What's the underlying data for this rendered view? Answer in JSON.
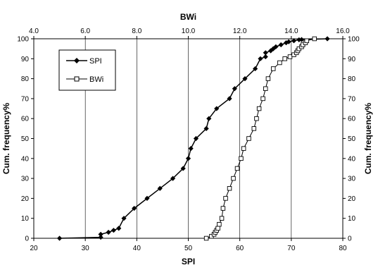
{
  "chart_data": {
    "type": "line",
    "title": "",
    "xlabel": "SPI",
    "x2label": "BWi",
    "ylabel": "Cum. frequency%",
    "y2label": "Cum. frequency%",
    "xlim": [
      20,
      80
    ],
    "x2lim": [
      4.0,
      16.0
    ],
    "ylim": [
      0,
      100
    ],
    "x_ticks": [
      20,
      30,
      40,
      50,
      60,
      70,
      80
    ],
    "x2_ticks": [
      "4.0",
      "6.0",
      "8.0",
      "10.0",
      "12.0",
      "14.0",
      "16.0"
    ],
    "y_ticks": [
      0,
      10,
      20,
      30,
      40,
      50,
      60,
      70,
      80,
      90,
      100
    ],
    "grid": "vertical",
    "legend_position": "top-left",
    "series": [
      {
        "name": "SPI",
        "axis": "bottom",
        "marker": "filled-diamond",
        "color": "#000000",
        "x": [
          25,
          33,
          33,
          34.5,
          35.5,
          36.5,
          37.5,
          39.5,
          42,
          44.5,
          47,
          49,
          50,
          50.5,
          51.5,
          53.5,
          54,
          55.5,
          58,
          59,
          61,
          63,
          64,
          65,
          65,
          66,
          66.5,
          67,
          68,
          69,
          69.5,
          70.5,
          71.5,
          72,
          77
        ],
        "y": [
          0,
          0.5,
          2,
          3,
          4,
          5,
          10,
          15,
          20,
          25,
          30,
          35,
          40,
          45,
          50,
          55,
          60,
          65,
          70,
          75,
          80,
          85,
          90,
          91,
          93,
          94,
          95,
          96,
          97,
          98,
          98.5,
          99,
          99.5,
          99.6,
          100
        ]
      },
      {
        "name": "BWi",
        "axis": "top",
        "marker": "open-square",
        "color": "#000000",
        "x": [
          10.7,
          10.9,
          11.0,
          11.05,
          11.1,
          11.15,
          11.2,
          11.3,
          11.35,
          11.45,
          11.6,
          11.75,
          11.9,
          12.05,
          12.15,
          12.35,
          12.55,
          12.65,
          12.75,
          12.9,
          13.0,
          13.1,
          13.3,
          13.55,
          13.75,
          13.95,
          14.1,
          14.2,
          14.25,
          14.3,
          14.4,
          14.45,
          14.55,
          14.6,
          14.9
        ],
        "y": [
          0,
          1,
          2,
          3,
          4,
          5,
          7,
          10,
          15,
          20,
          25,
          30,
          35,
          40,
          45,
          50,
          55,
          60,
          65,
          70,
          75,
          80,
          85,
          88,
          90,
          91,
          92,
          93,
          94,
          95,
          96,
          97,
          98,
          99,
          100
        ]
      }
    ]
  }
}
